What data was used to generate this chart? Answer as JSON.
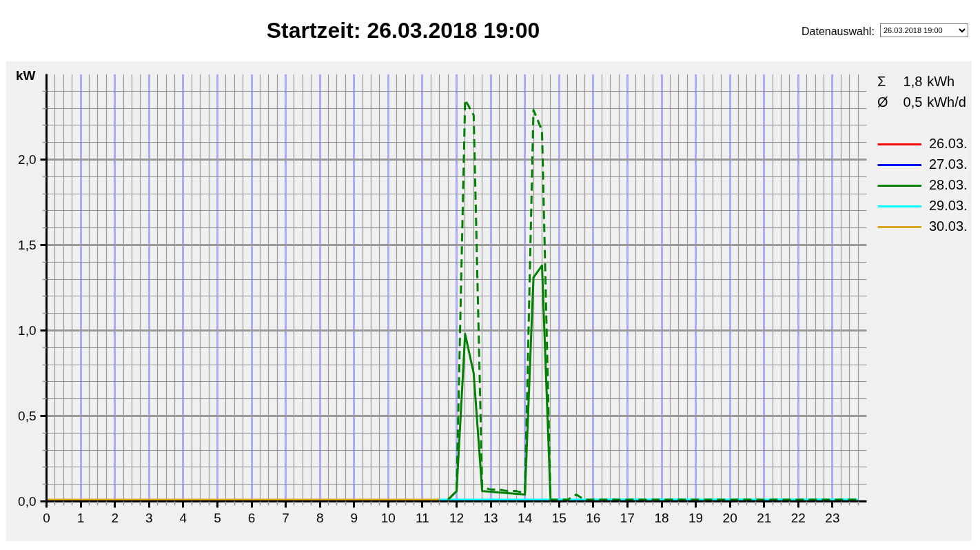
{
  "chart_data": {
    "type": "line",
    "title": "Startzeit: 26.03.2018 19:00",
    "ylabel": "kW",
    "annotations": [
      "Σ 1,8 kWh",
      "Ø 0,5 kWh/d",
      "Datenauswahl:",
      "26.03.2018 19:00"
    ],
    "xlim": [
      0,
      24
    ],
    "ylim": [
      0,
      2.5
    ],
    "xticks": [
      0,
      {
        "value": 0.25,
        "label": null
      },
      {
        "value": 0.5,
        "label": null
      },
      {
        "value": 0.75,
        "label": null
      },
      1,
      {
        "value": 1.25,
        "label": null
      },
      {
        "value": 1.5,
        "label": null
      },
      {
        "value": 1.75,
        "label": null
      },
      2,
      {
        "value": 2.25,
        "label": null
      },
      {
        "value": 2.5,
        "label": null
      },
      {
        "value": 2.75,
        "label": null
      },
      3,
      {
        "value": 3.25,
        "label": null
      },
      {
        "value": 3.5,
        "label": null
      },
      {
        "value": 3.75,
        "label": null
      },
      4,
      {
        "value": 4.25,
        "label": null
      },
      {
        "value": 4.5,
        "label": null
      },
      {
        "value": 4.75,
        "label": null
      },
      5,
      {
        "value": 5.25,
        "label": null
      },
      {
        "value": 5.5,
        "label": null
      },
      {
        "value": 5.75,
        "label": null
      },
      6,
      {
        "value": 6.25,
        "label": null
      },
      {
        "value": 6.5,
        "label": null
      },
      {
        "value": 6.75,
        "label": null
      },
      7,
      {
        "value": 7.25,
        "label": null
      },
      {
        "value": 7.5,
        "label": null
      },
      {
        "value": 7.75,
        "label": null
      },
      8,
      {
        "value": 8.25,
        "label": null
      },
      {
        "value": 8.5,
        "label": null
      },
      {
        "value": 8.75,
        "label": null
      },
      9,
      {
        "value": 9.25,
        "label": null
      },
      {
        "value": 9.5,
        "label": null
      },
      {
        "value": 9.75,
        "label": null
      },
      10,
      {
        "value": 10.25,
        "label": null
      },
      {
        "value": 10.5,
        "label": null
      },
      {
        "value": 10.75,
        "label": null
      },
      11,
      {
        "value": 11.25,
        "label": null
      },
      {
        "value": 11.5,
        "label": null
      },
      {
        "value": 11.75,
        "label": null
      },
      12,
      {
        "value": 12.25,
        "label": null
      },
      {
        "value": 12.5,
        "label": null
      },
      {
        "value": 12.75,
        "label": null
      },
      13,
      {
        "value": 13.25,
        "label": null
      },
      {
        "value": 13.5,
        "label": null
      },
      {
        "value": 13.75,
        "label": null
      },
      14,
      {
        "value": 14.25,
        "label": null
      },
      {
        "value": 14.5,
        "label": null
      },
      {
        "value": 14.75,
        "label": null
      },
      15,
      {
        "value": 15.25,
        "label": null
      },
      {
        "value": 15.5,
        "label": null
      },
      {
        "value": 15.75,
        "label": null
      },
      16,
      {
        "value": 16.25,
        "label": null
      },
      {
        "value": 16.5,
        "label": null
      },
      {
        "value": 16.75,
        "label": null
      },
      17,
      {
        "value": 17.25,
        "label": null
      },
      {
        "value": 17.5,
        "label": null
      },
      {
        "value": 17.75,
        "label": null
      },
      18,
      {
        "value": 18.25,
        "label": null
      },
      {
        "value": 18.5,
        "label": null
      },
      {
        "value": 18.75,
        "label": null
      },
      19,
      {
        "value": 19.25,
        "label": null
      },
      {
        "value": 19.5,
        "label": null
      },
      {
        "value": 19.75,
        "label": null
      },
      20,
      {
        "value": 20.25,
        "label": null
      },
      {
        "value": 20.5,
        "label": null
      },
      {
        "value": 20.75,
        "label": null
      },
      21,
      {
        "value": 21.25,
        "label": null
      },
      {
        "value": 21.5,
        "label": null
      },
      {
        "value": 21.75,
        "label": null
      },
      22,
      {
        "value": 22.25,
        "label": null
      },
      {
        "value": 22.5,
        "label": null
      },
      {
        "value": 22.75,
        "label": null
      },
      23,
      {
        "value": 23.25,
        "label": null
      },
      {
        "value": 23.5,
        "label": null
      },
      {
        "value": 23.75,
        "label": null
      }
    ],
    "yticks": [
      {
        "value": 0,
        "label": "0,0"
      },
      {
        "value": 0.1,
        "label": null
      },
      {
        "value": 0.2,
        "label": null
      },
      {
        "value": 0.3,
        "label": null
      },
      {
        "value": 0.4,
        "label": null
      },
      {
        "value": 0.5,
        "label": "0,5"
      },
      {
        "value": 0.6,
        "label": null
      },
      {
        "value": 0.7,
        "label": null
      },
      {
        "value": 0.8,
        "label": null
      },
      {
        "value": 0.9,
        "label": null
      },
      {
        "value": 1.0,
        "label": "1,0"
      },
      {
        "value": 1.1,
        "label": null
      },
      {
        "value": 1.2,
        "label": null
      },
      {
        "value": 1.3,
        "label": null
      },
      {
        "value": 1.4,
        "label": null
      },
      {
        "value": 1.5,
        "label": "1,5"
      },
      {
        "value": 1.6,
        "label": null
      },
      {
        "value": 1.7,
        "label": null
      },
      {
        "value": 1.8,
        "label": null
      },
      {
        "value": 1.9,
        "label": null
      },
      {
        "value": 2.0,
        "label": "2,0"
      },
      {
        "value": 2.1,
        "label": null
      },
      {
        "value": 2.2,
        "label": null
      },
      {
        "value": 2.3,
        "label": null
      },
      {
        "value": 2.4,
        "label": null
      }
    ],
    "grid": true,
    "legend": "right",
    "series": [
      {
        "name": "26.03.",
        "color": "#ff0000"
      },
      {
        "name": "27.03.",
        "color": "#0000ff"
      },
      {
        "name": "28.03.",
        "color": "#008000",
        "x": [
          11.75,
          12,
          12.25,
          12.5,
          12.75,
          14,
          14.25,
          14.5,
          14.75
        ],
        "values": [
          0.01,
          0.06,
          0.98,
          0.75,
          0.06,
          0.04,
          1.31,
          1.38,
          0.01
        ]
      },
      {
        "name": "29.03.",
        "color": "#00ffff",
        "x": [
          11.5,
          23.75
        ],
        "values": [
          0.01,
          0.01
        ]
      },
      {
        "name": "30.03.",
        "color": "#daa520",
        "x": [
          0,
          11.5
        ],
        "values": [
          0.01,
          0.01
        ]
      },
      {
        "color": "#008000",
        "line_style": "dashed",
        "x": [
          11.75,
          12,
          12.25,
          12.5,
          12.75,
          13,
          13.25,
          13.5,
          13.75,
          14,
          14.25,
          14.5,
          14.75,
          15,
          15.25,
          15.5,
          15.75,
          23.75
        ],
        "values": [
          0.01,
          0.06,
          2.35,
          2.26,
          0.08,
          0.07,
          0.07,
          0.06,
          0.06,
          0.05,
          2.29,
          2.17,
          0.01,
          0.01,
          0.01,
          0.04,
          0.01,
          0.01
        ]
      }
    ]
  }
}
